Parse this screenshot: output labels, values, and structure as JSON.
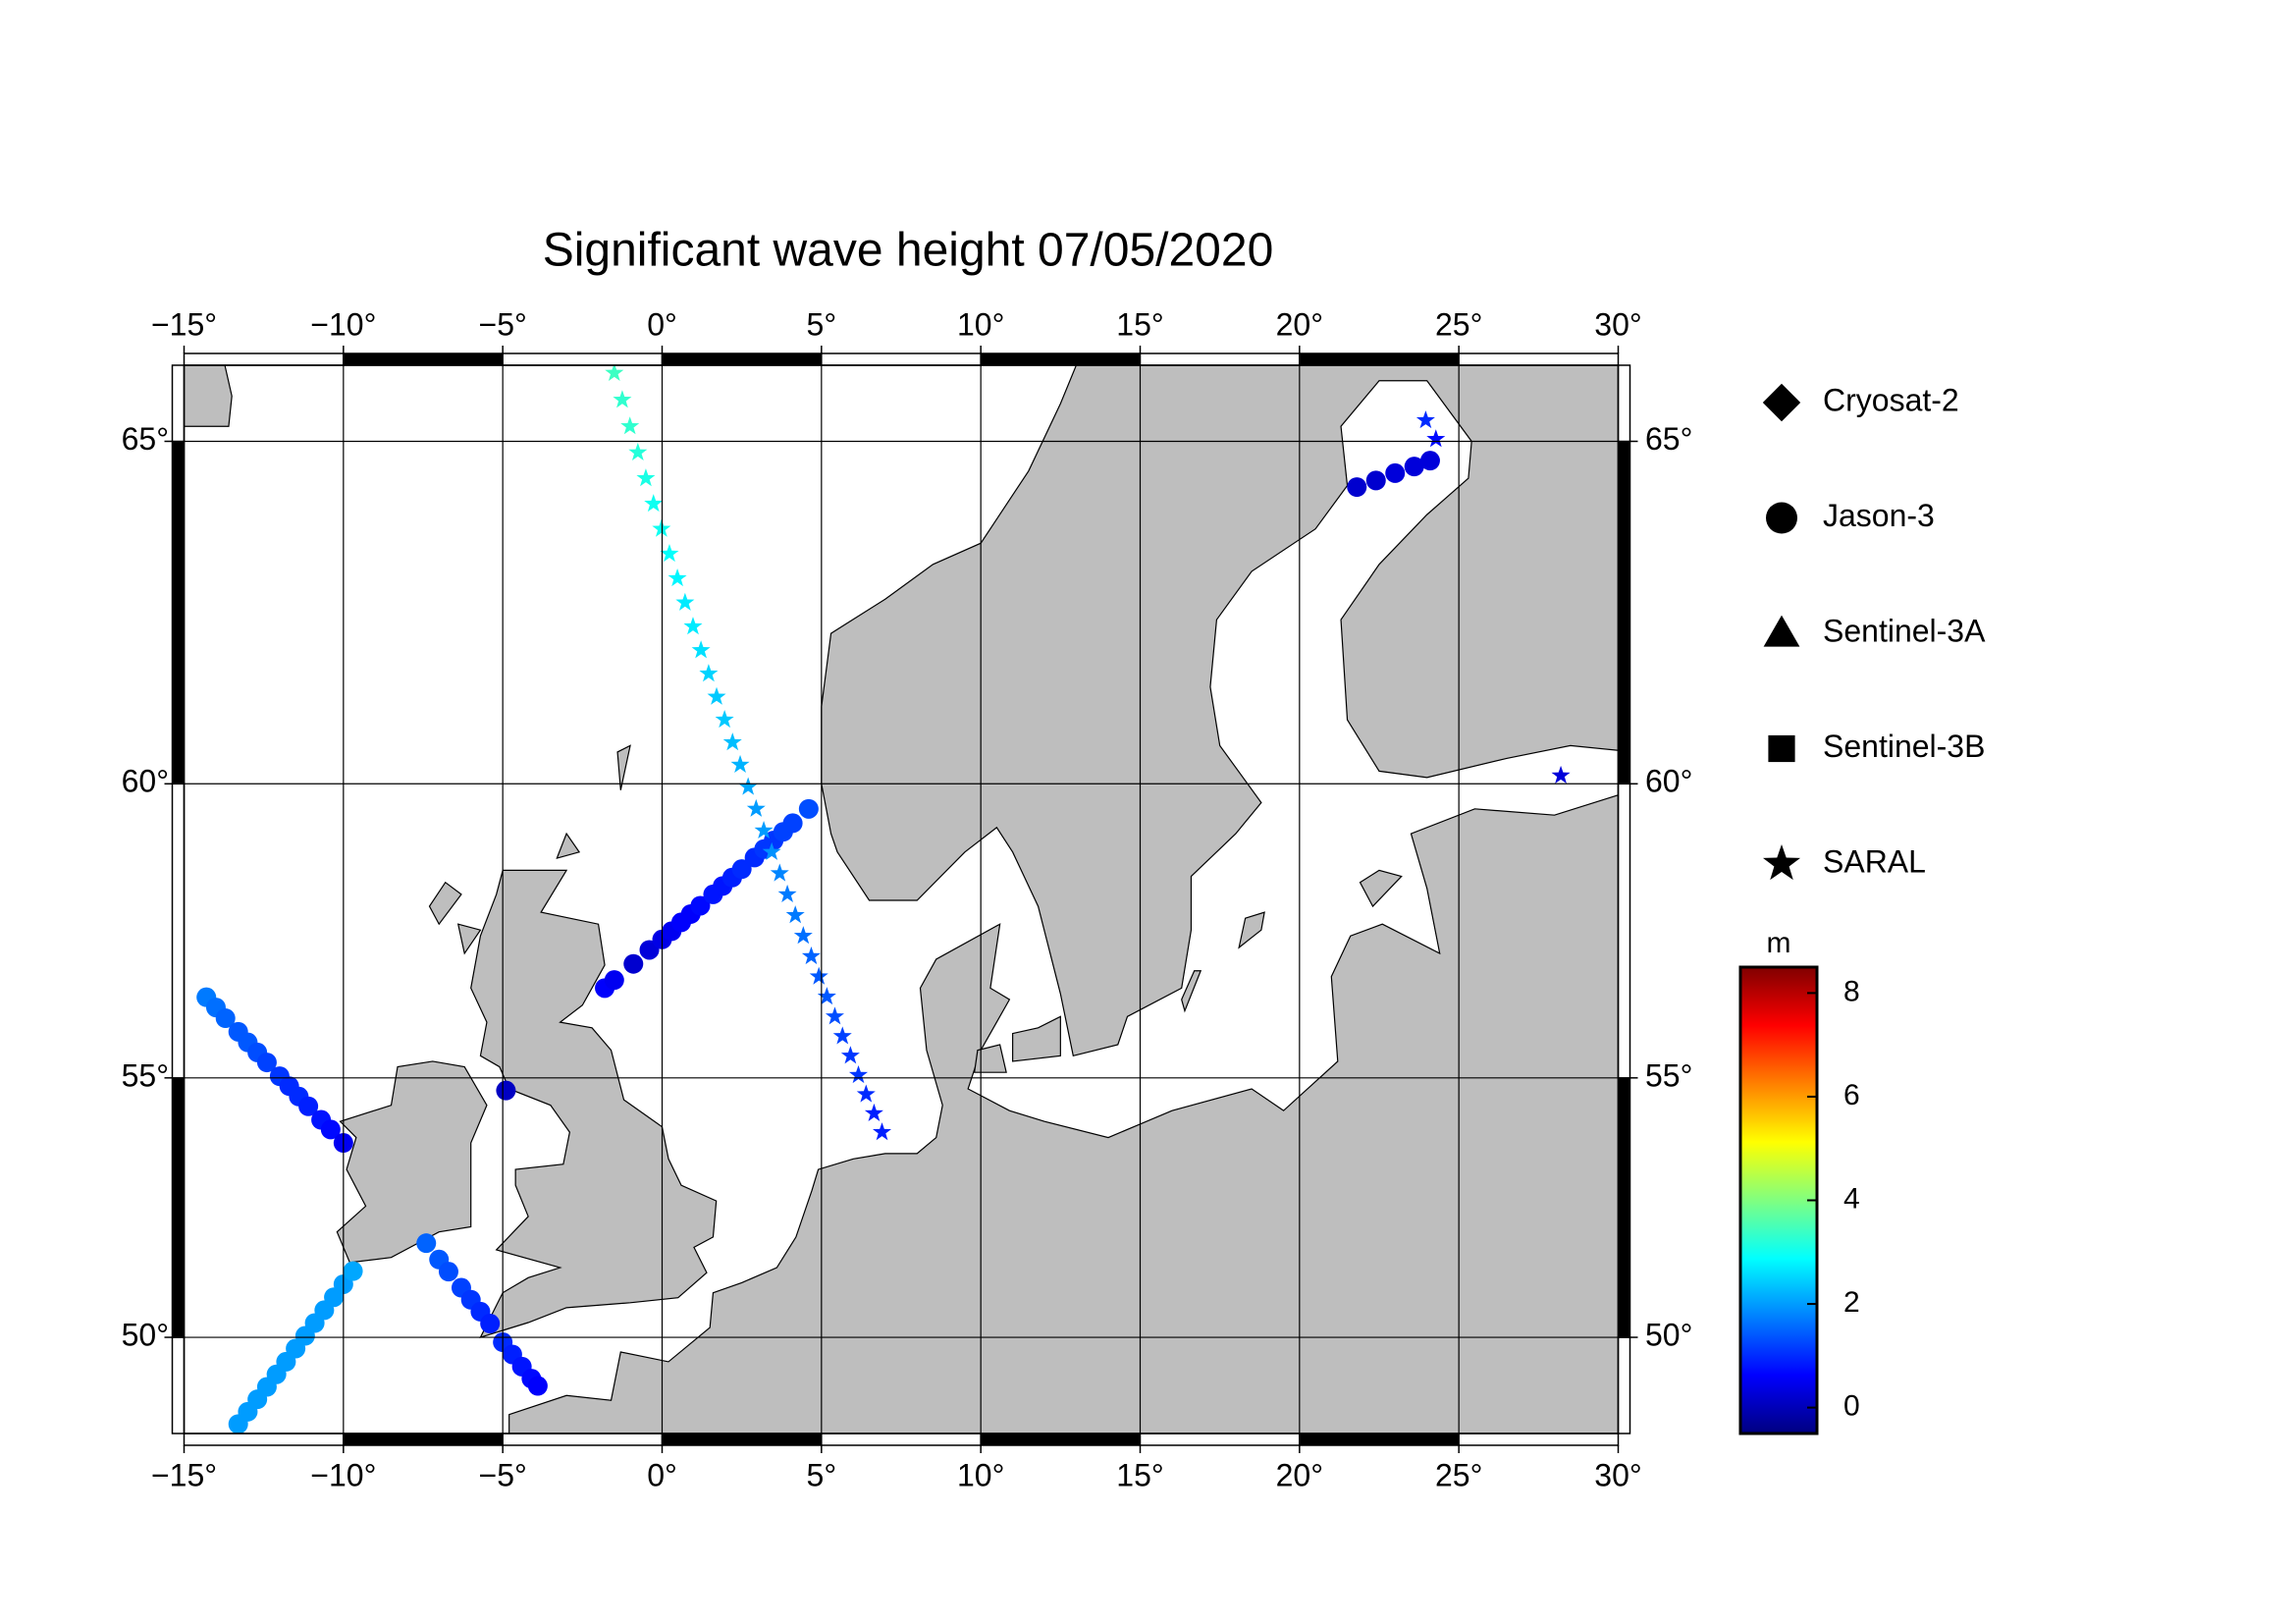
{
  "chart_data": {
    "type": "scatter",
    "title": "Significant wave height 07/05/2020",
    "projection": "mercator",
    "land_color": "#bebebe",
    "grid": true,
    "xlim": [
      -15,
      30
    ],
    "ylim": [
      48,
      66
    ],
    "xticks": [
      {
        "value": -15,
        "label": "−15°"
      },
      {
        "value": -10,
        "label": "−10°"
      },
      {
        "value": -5,
        "label": "−5°"
      },
      {
        "value": 0,
        "label": "0°"
      },
      {
        "value": 5,
        "label": "5°"
      },
      {
        "value": 10,
        "label": "10°"
      },
      {
        "value": 15,
        "label": "15°"
      },
      {
        "value": 20,
        "label": "20°"
      },
      {
        "value": 25,
        "label": "25°"
      },
      {
        "value": 30,
        "label": "30°"
      }
    ],
    "yticks": [
      {
        "value": 50,
        "label": "50°"
      },
      {
        "value": 55,
        "label": "55°"
      },
      {
        "value": 60,
        "label": "60°"
      },
      {
        "value": 65,
        "label": "65°"
      }
    ],
    "colorbar": {
      "label": "m",
      "colormap": "jet",
      "lim": [
        -0.5,
        8.5
      ],
      "ticks": [
        0,
        2,
        4,
        6,
        8
      ]
    },
    "series": [
      {
        "name": "Cryosat-2",
        "marker": "diamond",
        "x": [],
        "y": [],
        "values": []
      },
      {
        "name": "Jason-3",
        "marker": "circle",
        "x": [
          -1.8,
          -1.5,
          -0.9,
          -0.4,
          0.0,
          0.3,
          0.6,
          0.9,
          1.2,
          1.6,
          1.9,
          2.2,
          2.5,
          2.9,
          3.2,
          3.5,
          3.8,
          4.1,
          4.6,
          -4.9,
          -14.3,
          -14.0,
          -13.7,
          -13.3,
          -13.0,
          -12.7,
          -12.4,
          -12.0,
          -11.7,
          -11.4,
          -11.1,
          -10.7,
          -10.4,
          -10.0,
          -13.3,
          -13.0,
          -12.7,
          -12.4,
          -12.1,
          -11.8,
          -11.5,
          -11.2,
          -10.9,
          -10.6,
          -10.3,
          -10.0,
          -9.7,
          -7.4,
          -7.0,
          -6.7,
          -6.3,
          -6.0,
          -5.7,
          -5.4,
          -5.0,
          -4.7,
          -4.4,
          -4.1,
          -3.9,
          21.8,
          22.4,
          23.0,
          23.6,
          24.1
        ],
        "y": [
          56.6,
          56.74,
          57.02,
          57.26,
          57.44,
          57.58,
          57.73,
          57.87,
          58.01,
          58.2,
          58.34,
          58.48,
          58.62,
          58.81,
          58.95,
          59.09,
          59.23,
          59.37,
          59.6,
          54.77,
          56.44,
          56.26,
          56.07,
          55.83,
          55.64,
          55.46,
          55.28,
          55.03,
          54.85,
          54.66,
          54.48,
          54.23,
          54.05,
          53.8,
          48.2,
          48.46,
          48.72,
          48.98,
          49.24,
          49.5,
          49.77,
          50.03,
          50.29,
          50.55,
          50.81,
          51.07,
          51.33,
          51.88,
          51.56,
          51.32,
          51.0,
          50.76,
          50.52,
          50.28,
          49.9,
          49.65,
          49.4,
          49.15,
          49.0,
          64.38,
          64.47,
          64.57,
          64.66,
          64.74
        ],
        "values": [
          0.6,
          0.5,
          0.2,
          0.3,
          0.4,
          0.5,
          0.6,
          0.6,
          0.7,
          0.8,
          0.8,
          0.9,
          1.0,
          1.0,
          1.1,
          1.1,
          1.2,
          1.2,
          1.3,
          0.1,
          1.7,
          1.6,
          1.5,
          1.4,
          1.4,
          1.3,
          1.2,
          1.1,
          1.0,
          1.0,
          0.9,
          0.8,
          0.7,
          0.5,
          2.0,
          2.0,
          2.0,
          2.0,
          2.0,
          2.0,
          2.0,
          2.0,
          2.0,
          2.0,
          2.0,
          2.0,
          2.1,
          1.5,
          1.4,
          1.3,
          1.2,
          1.1,
          1.0,
          0.9,
          1.0,
          0.9,
          0.8,
          0.7,
          0.6,
          0.2,
          0.2,
          0.3,
          0.3,
          0.3
        ]
      },
      {
        "name": "Sentinel-3A",
        "marker": "triangle",
        "x": [],
        "y": [],
        "values": []
      },
      {
        "name": "Sentinel-3B",
        "marker": "square",
        "x": [],
        "y": [],
        "values": []
      },
      {
        "name": "SARAL",
        "marker": "star",
        "x": [
          -1.5,
          -1.25,
          -1.01,
          -0.76,
          -0.51,
          -0.27,
          -0.02,
          0.23,
          0.48,
          0.72,
          0.97,
          1.22,
          1.46,
          1.71,
          1.96,
          2.21,
          2.45,
          2.7,
          2.95,
          3.19,
          3.44,
          3.69,
          3.93,
          4.18,
          4.43,
          4.68,
          4.92,
          5.17,
          5.42,
          5.66,
          5.91,
          6.16,
          6.4,
          6.65,
          6.9,
          23.96,
          24.28,
          28.2
        ],
        "y": [
          65.9,
          65.55,
          65.2,
          64.85,
          64.5,
          64.15,
          63.8,
          63.45,
          63.1,
          62.75,
          62.4,
          62.05,
          61.7,
          61.35,
          61.0,
          60.65,
          60.3,
          59.95,
          59.6,
          59.25,
          58.9,
          58.55,
          58.2,
          57.85,
          57.5,
          57.15,
          56.8,
          56.45,
          56.1,
          55.75,
          55.4,
          55.05,
          54.7,
          54.35,
          54.0,
          65.28,
          65.03,
          60.13
        ],
        "values": [
          3.4,
          3.3,
          3.3,
          3.2,
          3.1,
          3.0,
          3.0,
          2.9,
          2.8,
          2.7,
          2.7,
          2.6,
          2.5,
          2.4,
          2.4,
          2.3,
          2.2,
          2.1,
          2.0,
          2.0,
          1.9,
          1.8,
          1.7,
          1.7,
          1.6,
          1.5,
          1.4,
          1.4,
          1.3,
          1.2,
          1.1,
          1.1,
          1.0,
          0.9,
          0.9,
          1.0,
          0.7,
          0.3
        ]
      }
    ]
  }
}
